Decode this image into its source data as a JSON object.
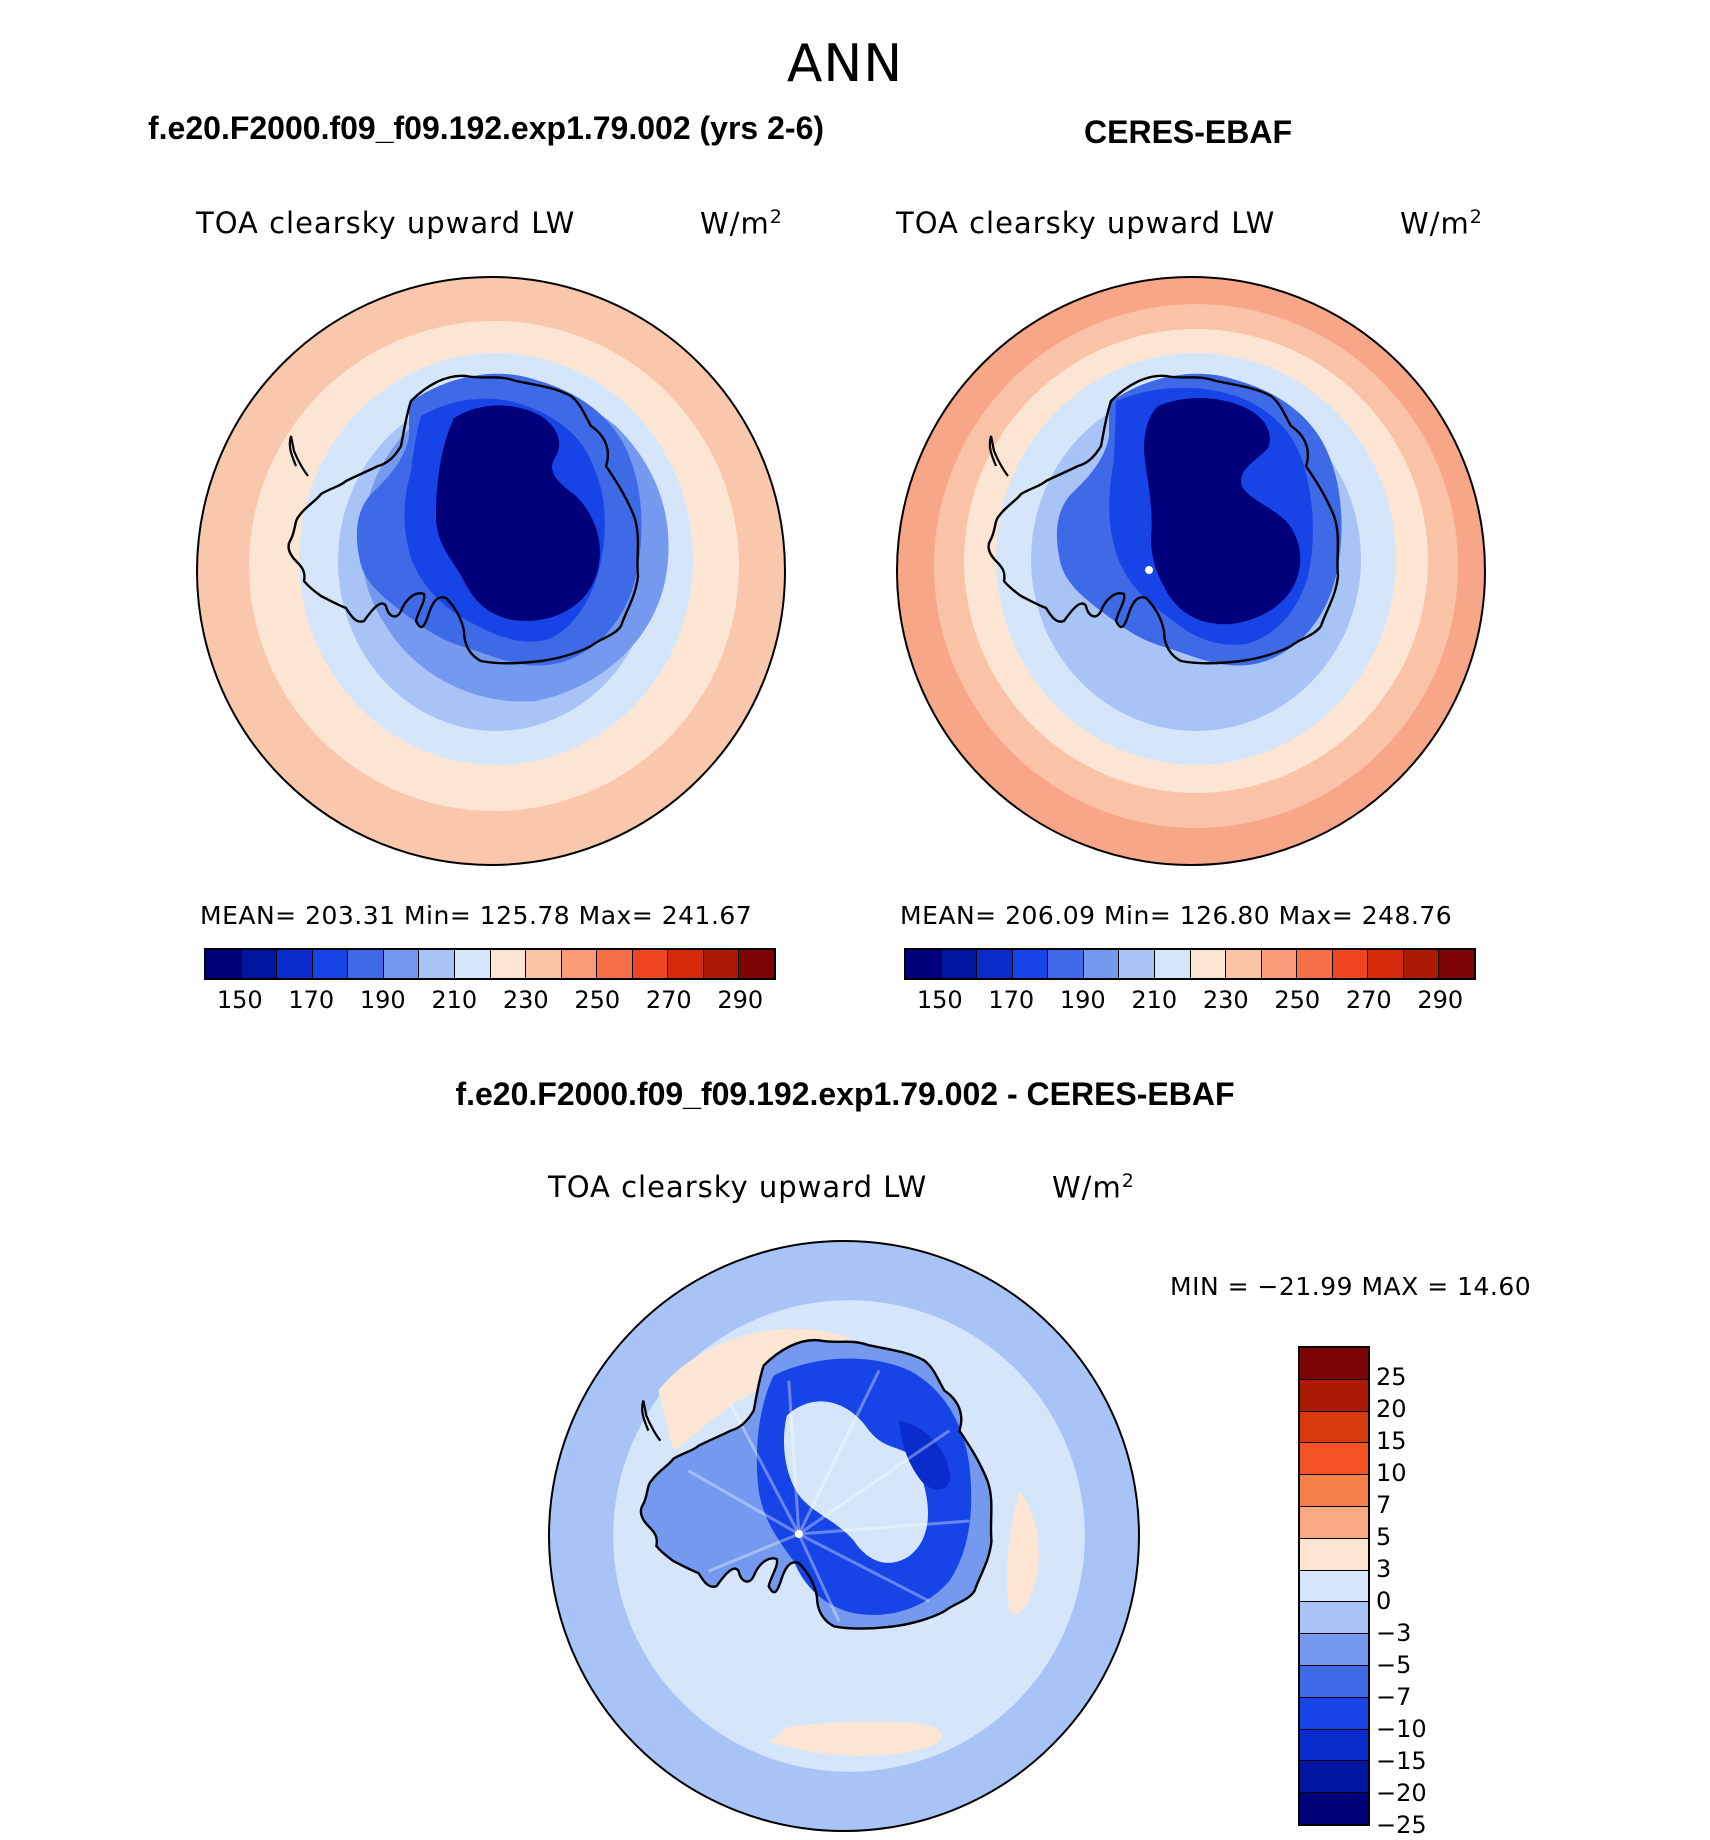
{
  "season": "ANN",
  "panels": {
    "test": {
      "title": "f.e20.F2000.f09_f09.192.exp1.79.002 (yrs 2-6)",
      "variable": "TOA clearsky upward LW",
      "units_base": "W/m",
      "units_exp": "2",
      "stats": "MEAN= 203.31   Min= 125.78   Max= 241.67"
    },
    "obs": {
      "title": "CERES-EBAF",
      "variable": "TOA clearsky upward LW",
      "units_base": "W/m",
      "units_exp": "2",
      "stats": "MEAN= 206.09   Min= 126.80   Max= 248.76"
    },
    "diff": {
      "title": "f.e20.F2000.f09_f09.192.exp1.79.002 - CERES-EBAF",
      "variable": "TOA clearsky upward LW",
      "units_base": "W/m",
      "units_exp": "2",
      "stats": "MIN = −21.99 MAX =   14.60"
    }
  },
  "colorbar_abs": {
    "colors": [
      "#00007a",
      "#0015a0",
      "#0a2ccc",
      "#1744e6",
      "#3e6ae8",
      "#7499ef",
      "#a8c4f6",
      "#d6e6fa",
      "#fde5d4",
      "#fcc3a6",
      "#fa9c78",
      "#f66f48",
      "#ee4420",
      "#d42a0a",
      "#ac1a04",
      "#7c0404"
    ],
    "labels": [
      "150",
      "170",
      "190",
      "210",
      "230",
      "250",
      "270",
      "290"
    ]
  },
  "colorbar_diff": {
    "colors": [
      "#7c0404",
      "#ac1a04",
      "#d63a0c",
      "#f45224",
      "#f6804a",
      "#f9aa82",
      "#fde5d4",
      "#d6e6fa",
      "#a8c4f6",
      "#7499ef",
      "#3e6ae8",
      "#1744e6",
      "#0a2ccc",
      "#0015a0",
      "#00007a"
    ],
    "labels": [
      "25",
      "20",
      "15",
      "10",
      "7",
      "5",
      "3",
      "0",
      "−3",
      "−5",
      "−7",
      "−10",
      "−15",
      "−20",
      "−25"
    ]
  },
  "fill_colors": {
    "test": {
      "outer": "#f9c7ab",
      "ring_peach": "#fde5d4",
      "ring_pale": "#d6e6fa",
      "ring_light": "#a8c4f6",
      "ring_mid": "#7499ef",
      "coast": "#3e6ae8",
      "interior": "#1744e6",
      "plateau": "#00007a"
    },
    "obs": {
      "outer": "#f7a688",
      "ring_salmon": "#fac2a6",
      "ring_peach": "#fde5d4",
      "ring_pale": "#d6e6fa",
      "ring_light": "#a8c4f6",
      "coast": "#3e6ae8",
      "interior": "#1744e6",
      "plateau": "#00007a"
    },
    "diff": {
      "ocean": "#a8c4f6",
      "ring_pale": "#d6e6fa",
      "patch_peach": "#fde5d4",
      "coast": "#7499ef",
      "interior": "#1744e6",
      "plateau_pale": "#d6e6fa",
      "deep": "#0a2ccc"
    }
  }
}
